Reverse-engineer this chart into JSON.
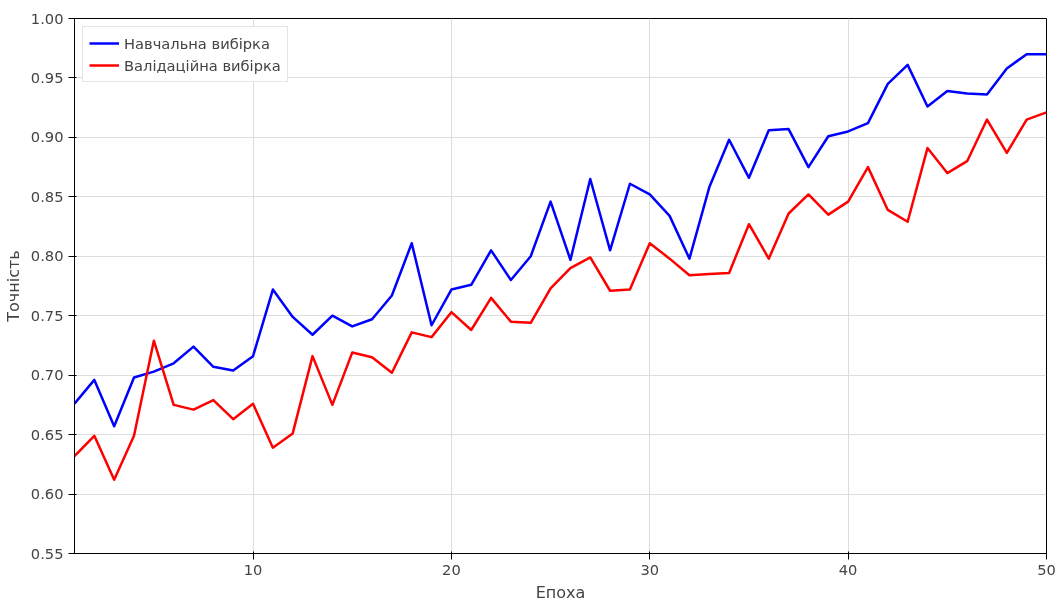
{
  "chart_data": {
    "type": "line",
    "xlabel": "Епоха",
    "ylabel": "Точність",
    "x": [
      1,
      2,
      3,
      4,
      5,
      6,
      7,
      8,
      9,
      10,
      11,
      12,
      13,
      14,
      15,
      16,
      17,
      18,
      19,
      20,
      21,
      22,
      23,
      24,
      25,
      26,
      27,
      28,
      29,
      30,
      31,
      32,
      33,
      34,
      35,
      36,
      37,
      38,
      39,
      40,
      41,
      42,
      43,
      44,
      45,
      46,
      47,
      48,
      49,
      50
    ],
    "series": [
      {
        "name": "Навчальна вибірка",
        "color": "#0000ff",
        "values": [
          0.676,
          0.696,
          0.657,
          0.698,
          0.703,
          0.71,
          0.724,
          0.707,
          0.704,
          0.716,
          0.772,
          0.749,
          0.734,
          0.75,
          0.741,
          0.747,
          0.767,
          0.811,
          0.742,
          0.772,
          0.776,
          0.805,
          0.78,
          0.8,
          0.846,
          0.797,
          0.865,
          0.805,
          0.861,
          0.852,
          0.834,
          0.798,
          0.858,
          0.898,
          0.866,
          0.906,
          0.907,
          0.875,
          0.901,
          0.905,
          0.912,
          0.945,
          0.961,
          0.926,
          0.939,
          0.937,
          0.936,
          0.958,
          0.97,
          0.97
        ]
      },
      {
        "name": "Валідаційна вибірка",
        "color": "#ff0000",
        "values": [
          0.632,
          0.649,
          0.612,
          0.649,
          0.729,
          0.675,
          0.671,
          0.679,
          0.663,
          0.676,
          0.639,
          0.651,
          0.716,
          0.675,
          0.719,
          0.715,
          0.702,
          0.736,
          0.732,
          0.753,
          0.738,
          0.765,
          0.745,
          0.744,
          0.773,
          0.79,
          0.799,
          0.771,
          0.772,
          0.811,
          0.798,
          0.784,
          0.785,
          0.786,
          0.827,
          0.798,
          0.836,
          0.852,
          0.835,
          0.846,
          0.875,
          0.839,
          0.829,
          0.891,
          0.87,
          0.88,
          0.915,
          0.887,
          0.915,
          0.921
        ]
      }
    ],
    "xlim": [
      1,
      50
    ],
    "xticks": [
      10,
      20,
      30,
      40,
      50
    ],
    "ylim": [
      0.55,
      1.0
    ],
    "yticks": [
      {
        "value": 0.55,
        "label": "0.55"
      },
      {
        "value": 0.6,
        "label": "0.60"
      },
      {
        "value": 0.65,
        "label": "0.65"
      },
      {
        "value": 0.7,
        "label": "0.70"
      },
      {
        "value": 0.75,
        "label": "0.75"
      },
      {
        "value": 0.8,
        "label": "0.80"
      },
      {
        "value": 0.85,
        "label": "0.85"
      },
      {
        "value": 0.9,
        "label": "0.90"
      },
      {
        "value": 0.95,
        "label": "0.95"
      },
      {
        "value": 1.0,
        "label": "1.00"
      }
    ],
    "grid": true,
    "legend": "top left",
    "marker": "none",
    "line_style": "solid"
  }
}
